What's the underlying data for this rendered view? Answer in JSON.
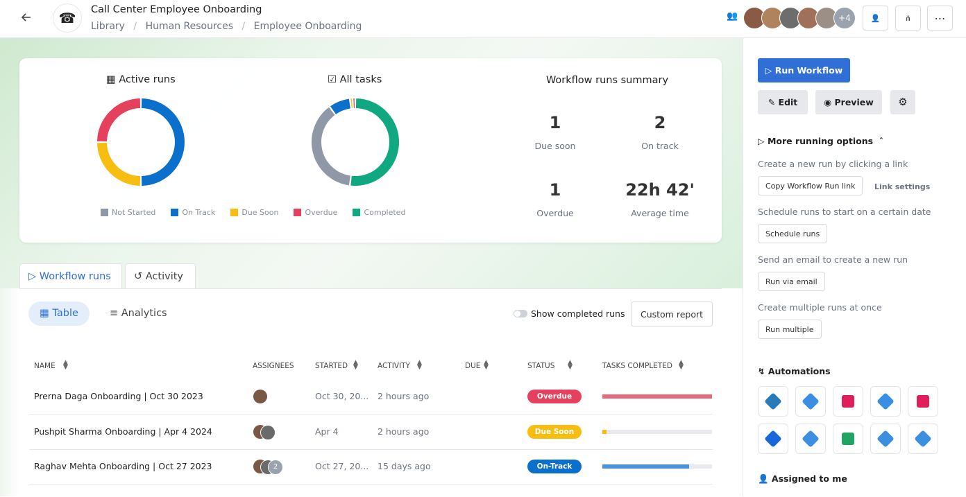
{
  "header": {
    "title": "Call Center Employee Onboarding",
    "breadcrumb": [
      "Library",
      "Human Resources",
      "Employee Onboarding"
    ],
    "extra_members": "+4"
  },
  "active_runs": {
    "title": "Active runs",
    "segments": [
      {
        "name": "On Track",
        "color": "#0b6fcc",
        "value": 2
      },
      {
        "name": "Due Soon",
        "color": "#f7bd10",
        "value": 1
      },
      {
        "name": "Overdue",
        "color": "#e5405e",
        "value": 1
      }
    ]
  },
  "all_tasks": {
    "title": "All tasks",
    "segments": [
      {
        "name": "Completed",
        "color": "#10a881",
        "value": 52
      },
      {
        "name": "Not Started",
        "color": "#8e98a6",
        "value": 38
      },
      {
        "name": "On Track",
        "color": "#0b6fcc",
        "value": 8
      },
      {
        "name": "Due Soon",
        "color": "#f7bd10",
        "value": 1
      },
      {
        "name": "Overdue",
        "color": "#e5405e",
        "value": 1
      }
    ]
  },
  "legend": [
    {
      "name": "Not Started",
      "color": "#8e98a6"
    },
    {
      "name": "On Track",
      "color": "#0b6fcc"
    },
    {
      "name": "Due Soon",
      "color": "#f7bd10"
    },
    {
      "name": "Overdue",
      "color": "#e5405e"
    },
    {
      "name": "Completed",
      "color": "#10a881"
    }
  ],
  "summary": {
    "title": "Workflow runs summary",
    "stats": [
      {
        "value": 1,
        "label": "Due soon"
      },
      {
        "value": 2,
        "label": "On track"
      },
      {
        "value": 1,
        "label": "Overdue"
      },
      {
        "value": "22h 42'",
        "label": "Average time"
      }
    ]
  },
  "tabs": [
    "Workflow runs",
    "Activity"
  ],
  "views": [
    "Table",
    "Analytics"
  ],
  "show_completed": "Show completed runs",
  "custom_report": "Custom report",
  "table": {
    "columns": [
      "NAME",
      "ASSIGNEES",
      "STARTED",
      "ACTIVITY",
      "DUE",
      "STATUS",
      "TASKS COMPLETED"
    ],
    "rows": [
      {
        "name": "Prerna Daga Onboarding | Oct 30 2023",
        "started": "Oct 30, 20...",
        "activity": "2 hours ago",
        "status": "Overdue",
        "color": "#e5405e",
        "bar_color": "#e8677c",
        "tasks_completed": 100
      },
      {
        "name": "Pushpit Sharma Onboarding | Apr 4 2024",
        "started": "Apr 4",
        "activity": "2 hours ago",
        "status": "Due Soon",
        "color": "#f7bd10",
        "bar_color": "#f7bd10",
        "tasks_completed": 4
      },
      {
        "name": "Raghav Mehta Onboarding | Oct 27 2023",
        "started": "Oct 27, 20...",
        "activity": "15 days ago",
        "status": "On-Track",
        "color": "#0b6fcc",
        "bar_color": "#4b93d8",
        "tasks_completed": 79,
        "extra_assignees": "2"
      }
    ]
  },
  "sidebar": {
    "run_workflow": "Run Workflow",
    "edit": "Edit",
    "preview": "Preview",
    "more_options": "More running options",
    "options": [
      {
        "description": "Create a new run by clicking a link",
        "button": "Copy Workflow Run link"
      },
      {
        "description": "Schedule runs to start on a certain date",
        "button": "Schedule runs"
      },
      {
        "description": "Send an email to create a new run",
        "button": "Run via email"
      },
      {
        "description": "Create multiple runs at once",
        "button": "Run multiple"
      }
    ],
    "link_settings": "Link settings",
    "automations": "Automations",
    "assigned_to_me": "Assigned to me"
  }
}
